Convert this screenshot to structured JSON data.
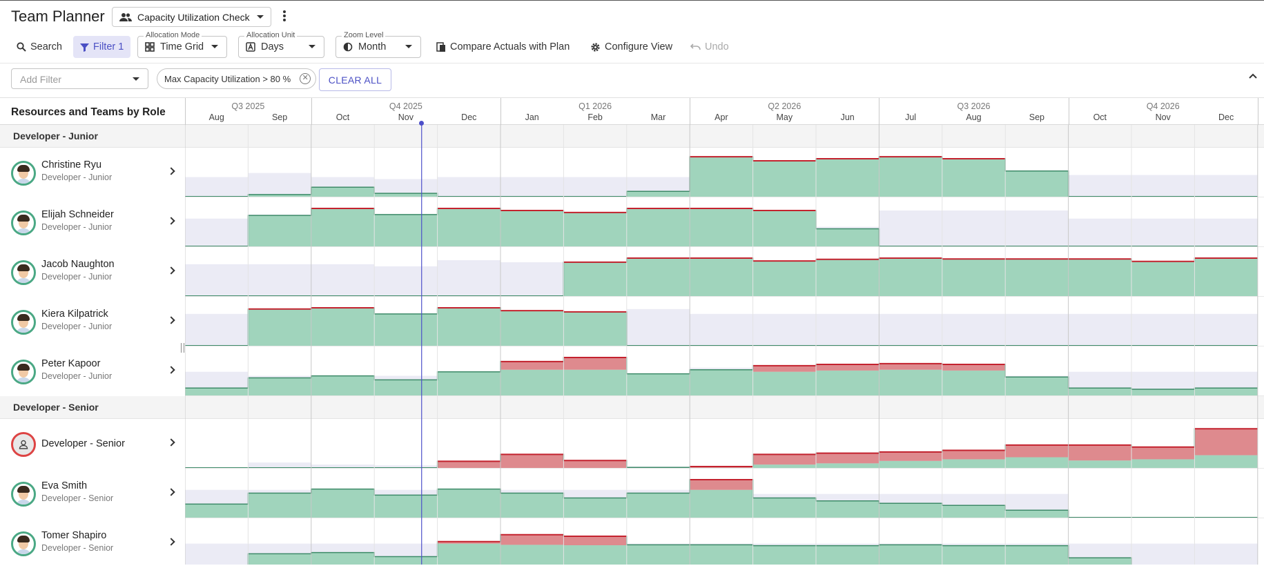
{
  "header": {
    "title": "Team Planner",
    "view_select": "Capacity Utilization Check",
    "icons": {
      "view": "people-icon",
      "more": "more-vert-icon"
    }
  },
  "toolbar": {
    "search_label": "Search",
    "filter_label": "Filter 1",
    "allocation_mode": {
      "label": "Allocation Mode",
      "value": "Time Grid"
    },
    "allocation_unit": {
      "label": "Allocation Unit",
      "value": "Days"
    },
    "zoom_level": {
      "label": "Zoom Level",
      "value": "Month"
    },
    "compare_label": "Compare Actuals with Plan",
    "configure_label": "Configure View",
    "undo_label": "Undo"
  },
  "filters": {
    "add_placeholder": "Add Filter",
    "chip": "Max Capacity Utilization > 80 %",
    "clear_label": "CLEAR ALL"
  },
  "grid": {
    "left_header": "Resources and Teams by Role",
    "quarters": [
      "Q3 2025",
      "Q4 2025",
      "Q1 2026",
      "Q2 2026",
      "Q3 2026",
      "Q4 2026"
    ],
    "months": [
      "Aug",
      "Sep",
      "Oct",
      "Nov",
      "Dec",
      "Jan",
      "Feb",
      "Mar",
      "Apr",
      "May",
      "Jun",
      "Jul",
      "Aug",
      "Sep",
      "Oct",
      "Nov",
      "Dec"
    ],
    "today_marker_month": "Nov"
  },
  "colors": {
    "allocated": "#a0d4bc",
    "allocated_line": "#3d8a68",
    "over_allocated": "#de8a8e",
    "over_line": "#c4222e",
    "capacity": "#ebebf5",
    "today": "#4c4fc9"
  },
  "groups": [
    {
      "name": "Developer - Junior",
      "resources": [
        {
          "name": "Christine Ryu",
          "role": "Developer - Junior",
          "capacity": [
            0.5,
            0.6,
            0.5,
            0.45,
            0.5,
            0.5,
            0.5,
            0.5,
            1.0,
            0.9,
            0.95,
            1.0,
            0.95,
            0.55,
            0.55,
            0.55,
            0.55
          ],
          "allocation": [
            0.02,
            0.07,
            0.25,
            0.1,
            0.02,
            0.02,
            0.02,
            0.15,
            1.0,
            0.9,
            0.95,
            1.0,
            0.95,
            0.65,
            0.02,
            0.02,
            0.02
          ]
        },
        {
          "name": "Elijah Schneider",
          "role": "Developer - Junior",
          "capacity": [
            0.7,
            0.8,
            0.95,
            0.8,
            0.95,
            0.9,
            0.85,
            0.95,
            0.95,
            0.9,
            0.5,
            0.9,
            0.9,
            0.9,
            0.7,
            0.7,
            0.7
          ],
          "allocation": [
            0.02,
            0.78,
            0.95,
            0.8,
            0.95,
            0.9,
            0.85,
            0.95,
            0.95,
            0.9,
            0.45,
            0.02,
            0.02,
            0.02,
            0.02,
            0.02,
            0.02
          ]
        },
        {
          "name": "Jacob Naughton",
          "role": "Developer - Junior",
          "capacity": [
            0.8,
            0.8,
            0.8,
            0.75,
            0.9,
            0.85,
            0.85,
            0.95,
            0.95,
            0.88,
            0.92,
            0.95,
            0.93,
            0.93,
            0.93,
            0.87,
            0.95
          ],
          "allocation": [
            0.02,
            0.02,
            0.02,
            0.02,
            0.02,
            0.02,
            0.85,
            0.95,
            0.95,
            0.88,
            0.92,
            0.95,
            0.93,
            0.93,
            0.93,
            0.87,
            0.95
          ]
        },
        {
          "name": "Kiera Kilpatrick",
          "role": "Developer - Junior",
          "capacity": [
            0.8,
            0.92,
            0.95,
            0.8,
            0.95,
            0.88,
            0.85,
            0.92,
            0.8,
            0.8,
            0.8,
            0.8,
            0.8,
            0.8,
            0.8,
            0.8,
            0.8
          ],
          "allocation": [
            0.02,
            0.92,
            0.95,
            0.8,
            0.95,
            0.88,
            0.85,
            0.02,
            0.02,
            0.02,
            0.02,
            0.02,
            0.02,
            0.02,
            0.02,
            0.02,
            0.02
          ]
        },
        {
          "name": "Peter Kapoor",
          "role": "Developer - Junior",
          "capacity": [
            0.6,
            0.5,
            0.5,
            0.5,
            0.5,
            0.6,
            0.6,
            0.5,
            0.7,
            0.6,
            0.6,
            0.65,
            0.6,
            0.5,
            0.6,
            0.6,
            0.6
          ],
          "allocation": [
            0.2,
            0.45,
            0.5,
            0.4,
            0.6,
            0.85,
            0.95,
            0.55,
            0.65,
            0.75,
            0.78,
            0.8,
            0.78,
            0.47,
            0.2,
            0.17,
            0.2
          ],
          "overload": [
            0,
            0,
            0,
            0,
            0,
            0.2,
            0.3,
            0,
            0,
            0.15,
            0.15,
            0.15,
            0.15,
            0,
            0,
            0,
            0
          ]
        }
      ]
    },
    {
      "name": "Developer - Senior",
      "resources": [
        {
          "name": "Developer - Senior",
          "role": "",
          "generic": true,
          "capacity": [
            0.02,
            0.15,
            0.1,
            0.08,
            0.1,
            0.1,
            0.1,
            0.05,
            0.05,
            0.3,
            0.3,
            0.3,
            0.3,
            0.3,
            0.3,
            0.3,
            0.3
          ],
          "allocation": [
            0.02,
            0.02,
            0.02,
            0.02,
            0.18,
            0.35,
            0.2,
            0.03,
            0.05,
            0.35,
            0.38,
            0.41,
            0.45,
            0.58,
            0.58,
            0.53,
            0.98
          ],
          "overload": [
            0,
            0,
            0,
            0,
            0.18,
            0.35,
            0.2,
            0,
            0.03,
            0.25,
            0.25,
            0.22,
            0.22,
            0.3,
            0.38,
            0.3,
            0.65
          ]
        },
        {
          "name": "Eva Smith",
          "role": "Developer - Senior",
          "capacity": [
            0.7,
            0.7,
            0.7,
            0.7,
            0.7,
            0.7,
            0.7,
            0.7,
            0.9,
            0.6,
            0.6,
            0.6,
            0.6,
            0.6,
            0.02,
            0.02,
            0.02
          ],
          "allocation": [
            0.35,
            0.62,
            0.72,
            0.57,
            0.72,
            0.62,
            0.5,
            0.62,
            0.95,
            0.5,
            0.43,
            0.37,
            0.32,
            0.2,
            0.02,
            0.02,
            0.02
          ],
          "overload": [
            0,
            0,
            0,
            0,
            0,
            0,
            0,
            0,
            0.25,
            0,
            0,
            0,
            0,
            0,
            0,
            0,
            0
          ]
        },
        {
          "name": "Tomer Shapiro",
          "role": "Developer - Senior",
          "capacity": [
            0.6,
            0.6,
            0.6,
            0.6,
            0.6,
            0.6,
            0.6,
            0.6,
            0.6,
            0.6,
            0.6,
            0.6,
            0.6,
            0.6,
            0.6,
            0.6,
            0.6
          ],
          "allocation": [
            0.02,
            0.35,
            0.38,
            0.28,
            0.65,
            0.82,
            0.78,
            0.57,
            0.57,
            0.55,
            0.55,
            0.57,
            0.55,
            0.55,
            0.25,
            0.02,
            0.02
          ],
          "overload": [
            0,
            0,
            0,
            0,
            0.05,
            0.25,
            0.22,
            0,
            0,
            0,
            0,
            0,
            0,
            0,
            0,
            0,
            0
          ]
        }
      ]
    }
  ]
}
